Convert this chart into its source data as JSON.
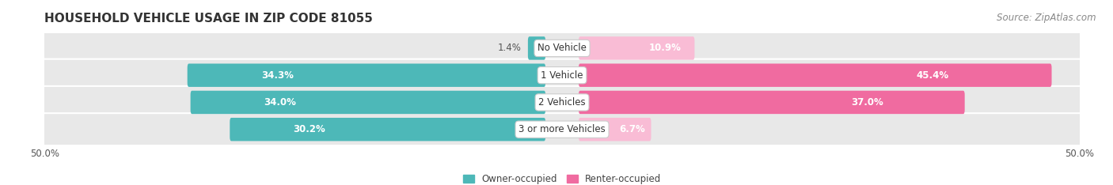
{
  "title": "HOUSEHOLD VEHICLE USAGE IN ZIP CODE 81055",
  "source": "Source: ZipAtlas.com",
  "categories": [
    "No Vehicle",
    "1 Vehicle",
    "2 Vehicles",
    "3 or more Vehicles"
  ],
  "owner_values": [
    1.4,
    34.3,
    34.0,
    30.2
  ],
  "renter_values": [
    10.9,
    45.4,
    37.0,
    6.7
  ],
  "owner_color": "#4db8b8",
  "renter_color": "#f06ba0",
  "renter_color_light": "#f9bcd5",
  "owner_label": "Owner-occupied",
  "renter_label": "Renter-occupied",
  "xlim": 50.0,
  "background_color": "#ffffff",
  "bar_bg_color": "#e8e8e8",
  "title_fontsize": 11,
  "source_fontsize": 8.5,
  "label_fontsize": 8.5,
  "cat_fontsize": 8.5,
  "axis_label_fontsize": 8.5
}
